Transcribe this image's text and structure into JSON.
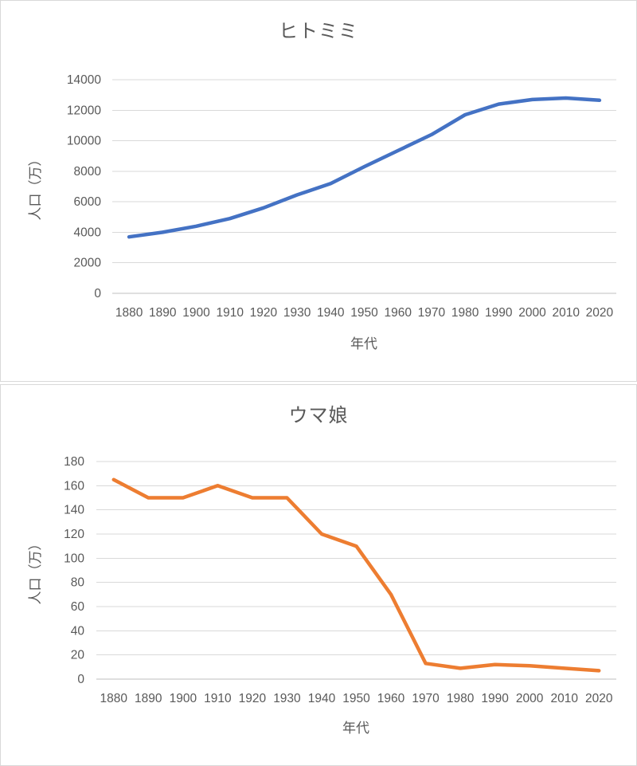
{
  "colors": {
    "text": "#595959",
    "gridline": "#d9d9d9",
    "axis_line": "#bfbfbf",
    "panel_border": "#d9d9d9",
    "series_blue": "#4472c4",
    "series_orange": "#ed7d31"
  },
  "chart_data": [
    {
      "type": "line",
      "title": "ヒトミミ",
      "xlabel": "年代",
      "ylabel": "人口（万）",
      "categories": [
        "1880",
        "1890",
        "1900",
        "1910",
        "1920",
        "1930",
        "1940",
        "1950",
        "1960",
        "1970",
        "1980",
        "1990",
        "2000",
        "2010",
        "2020"
      ],
      "values": [
        3700,
        4000,
        4400,
        4900,
        5600,
        6450,
        7200,
        8300,
        9350,
        10400,
        11700,
        12400,
        12700,
        12800,
        12650
      ],
      "ylim": [
        0,
        14000
      ],
      "ytick_step": 2000,
      "line_color": "#4472c4",
      "grid": true,
      "legend": "none"
    },
    {
      "type": "line",
      "title": "ウマ娘",
      "xlabel": "年代",
      "ylabel": "人口（万）",
      "categories": [
        "1880",
        "1890",
        "1900",
        "1910",
        "1920",
        "1930",
        "1940",
        "1950",
        "1960",
        "1970",
        "1980",
        "1990",
        "2000",
        "2010",
        "2020"
      ],
      "values": [
        165,
        150,
        150,
        160,
        150,
        150,
        120,
        110,
        70,
        13,
        9,
        12,
        11,
        9,
        7
      ],
      "ylim": [
        0,
        180
      ],
      "ytick_step": 20,
      "line_color": "#ed7d31",
      "grid": true,
      "legend": "none"
    }
  ]
}
